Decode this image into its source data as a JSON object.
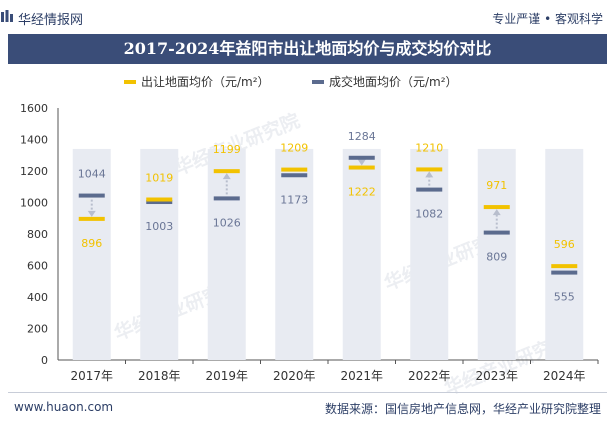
{
  "header": {
    "brand": "华经情报网",
    "tagline": "专业严谨 • 客观科学"
  },
  "footer": {
    "website": "www.huaon.com",
    "source": "数据来源：国信房地产信息网，华经产业研究院整理"
  },
  "watermark": "华经产业研究院",
  "colors": {
    "title_bg": "#3a4d78",
    "column_bg": "#e8ebf2",
    "supply_color": "#f2c200",
    "deal_color": "#5b6b8e",
    "supply_label": "#f2c200",
    "deal_label": "#6a7696",
    "arrow": "#b8becd"
  },
  "chart_data": {
    "type": "bar",
    "title": "2017-2024年益阳市出让地面均价与成交均价对比",
    "categories": [
      "2017年",
      "2018年",
      "2019年",
      "2020年",
      "2021年",
      "2022年",
      "2023年",
      "2024年"
    ],
    "series": [
      {
        "name": "出让地面均价（元/m²）",
        "values": [
          896,
          1019,
          1199,
          1209,
          1222,
          1210,
          971,
          596
        ]
      },
      {
        "name": "成交地面均价（元/m²）",
        "values": [
          1044,
          1003,
          1026,
          1173,
          1284,
          1082,
          809,
          555
        ]
      }
    ],
    "yticks": [
      0,
      200,
      400,
      600,
      800,
      1000,
      1200,
      1400,
      1600
    ],
    "ylim": [
      0,
      1600
    ],
    "background_column_value": 1340,
    "xlabel": "",
    "ylabel": "",
    "legend": "top-center"
  }
}
